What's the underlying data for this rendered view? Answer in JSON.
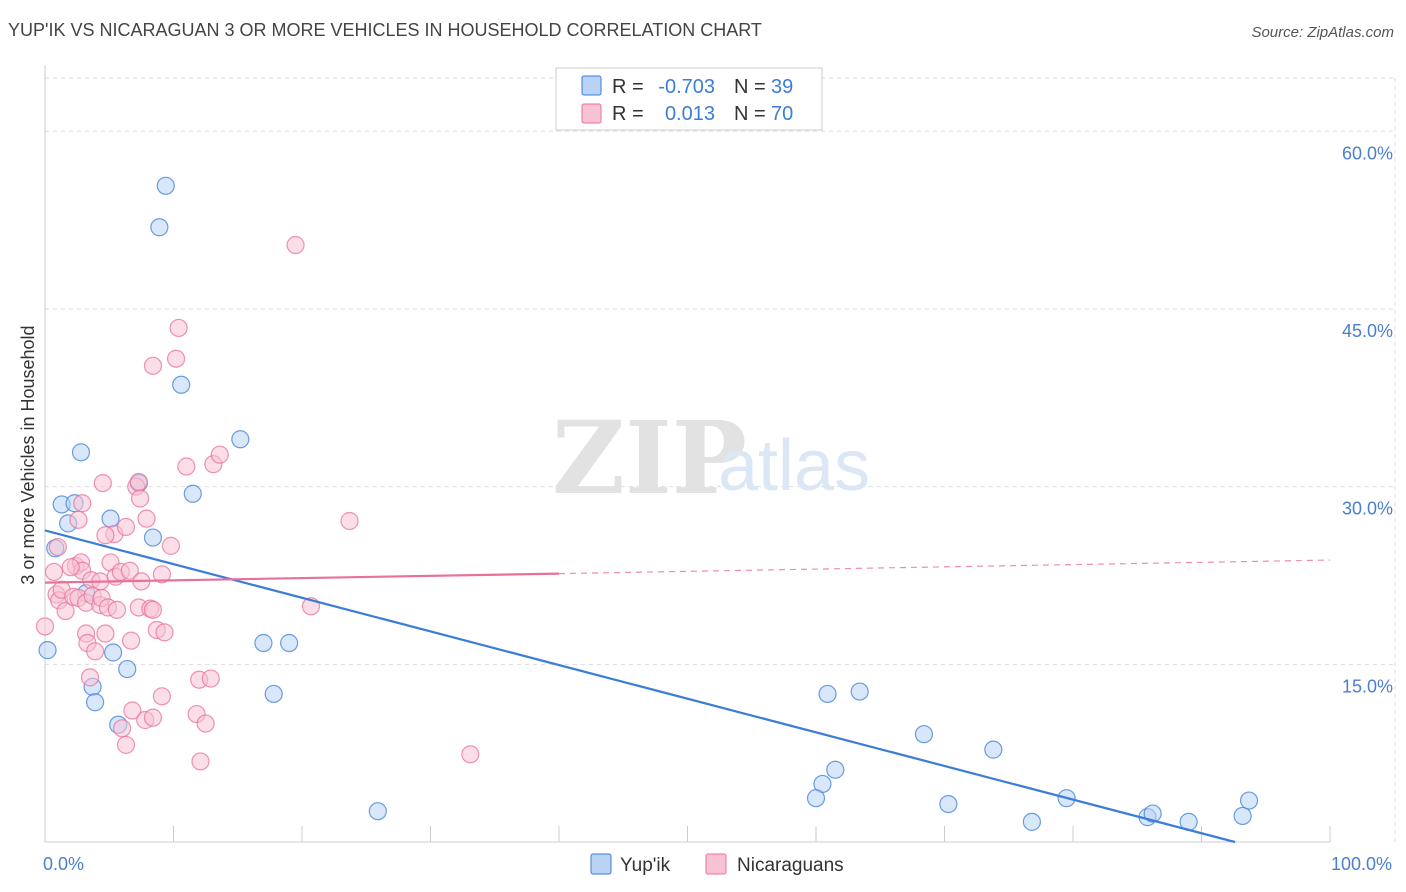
{
  "title": "YUP'IK VS NICARAGUAN 3 OR MORE VEHICLES IN HOUSEHOLD CORRELATION CHART",
  "source": "Source: ZipAtlas.com",
  "watermark": {
    "zip": "ZIP",
    "atlas": "atlas"
  },
  "colors": {
    "blue": "#3b7dd8",
    "blue_fill": "#b9d3f5",
    "pink": "#e8709a",
    "pink_fill": "#f7c3d4",
    "grid": "#dddddd",
    "tick_text": "#4a7fd0"
  },
  "legend": {
    "r_label": "R =",
    "n_label": "N =",
    "rows": [
      {
        "series": "Yup'ik",
        "r": "-0.703",
        "n": "39"
      },
      {
        "series": "Nicaraguans",
        "r": "0.013",
        "n": "70"
      }
    ]
  },
  "chart_data": {
    "type": "scatter",
    "xlabel": "",
    "ylabel": "3 or more Vehicles in Household",
    "xlim": [
      0,
      100
    ],
    "ylim": [
      0,
      64.5
    ],
    "x_tick_labels": [
      {
        "value": 0,
        "label": "0.0%"
      },
      {
        "value": 100,
        "label": "100.0%"
      }
    ],
    "x_minor_ticks": [
      10,
      20,
      30,
      40,
      50,
      60,
      70,
      80,
      90,
      100
    ],
    "y_ticks": [
      {
        "value": 15,
        "label": "15.0%"
      },
      {
        "value": 30,
        "label": "30.0%"
      },
      {
        "value": 45,
        "label": "45.0%"
      },
      {
        "value": 60,
        "label": "60.0%"
      }
    ],
    "series": [
      {
        "name": "Yup'ik",
        "color": "#3b7dd8",
        "fill": "#b9d3f5",
        "points": [
          [
            9.4,
            55.4
          ],
          [
            8.9,
            51.9
          ],
          [
            10.6,
            38.6
          ],
          [
            15.2,
            34.0
          ],
          [
            2.8,
            32.9
          ],
          [
            7.3,
            30.3
          ],
          [
            11.5,
            29.4
          ],
          [
            1.3,
            28.5
          ],
          [
            2.3,
            28.6
          ],
          [
            5.1,
            27.3
          ],
          [
            1.8,
            26.9
          ],
          [
            8.4,
            25.7
          ],
          [
            0.8,
            24.8
          ],
          [
            3.2,
            21.0
          ],
          [
            0.2,
            16.2
          ],
          [
            5.3,
            16.0
          ],
          [
            6.4,
            14.6
          ],
          [
            3.7,
            13.1
          ],
          [
            3.9,
            11.8
          ],
          [
            17.0,
            16.8
          ],
          [
            19.0,
            16.8
          ],
          [
            17.8,
            12.5
          ],
          [
            5.7,
            9.9
          ],
          [
            25.9,
            2.6
          ],
          [
            60.9,
            12.5
          ],
          [
            63.4,
            12.7
          ],
          [
            68.4,
            9.1
          ],
          [
            73.8,
            7.8
          ],
          [
            61.5,
            6.1
          ],
          [
            60.5,
            4.9
          ],
          [
            60.0,
            3.7
          ],
          [
            70.3,
            3.2
          ],
          [
            76.8,
            1.7
          ],
          [
            79.5,
            3.7
          ],
          [
            85.8,
            2.1
          ],
          [
            86.2,
            2.4
          ],
          [
            89.0,
            1.7
          ],
          [
            93.2,
            2.2
          ],
          [
            93.7,
            3.5
          ]
        ],
        "trend": {
          "x_start": 0,
          "y_start": 26.3,
          "x_end": 92.6,
          "y_end": 0,
          "dashed_after": null
        }
      },
      {
        "name": "Nicaraguans",
        "color": "#e8709a",
        "fill": "#f7c3d4",
        "points": [
          [
            0.0,
            18.2
          ],
          [
            0.7,
            22.8
          ],
          [
            0.9,
            20.9
          ],
          [
            1.1,
            20.4
          ],
          [
            1.3,
            21.3
          ],
          [
            1.6,
            19.5
          ],
          [
            2.2,
            20.7
          ],
          [
            2.4,
            23.3
          ],
          [
            2.6,
            20.6
          ],
          [
            2.6,
            27.2
          ],
          [
            2.8,
            23.6
          ],
          [
            2.9,
            22.9
          ],
          [
            2.9,
            28.6
          ],
          [
            3.2,
            17.6
          ],
          [
            3.2,
            20.2
          ],
          [
            3.3,
            16.8
          ],
          [
            3.5,
            13.9
          ],
          [
            3.6,
            22.1
          ],
          [
            3.7,
            20.8
          ],
          [
            4.3,
            20.0
          ],
          [
            4.3,
            22.0
          ],
          [
            4.4,
            20.6
          ],
          [
            4.5,
            30.3
          ],
          [
            4.7,
            17.6
          ],
          [
            4.9,
            19.8
          ],
          [
            5.1,
            23.6
          ],
          [
            5.4,
            26.0
          ],
          [
            5.5,
            22.4
          ],
          [
            5.6,
            19.6
          ],
          [
            5.9,
            22.8
          ],
          [
            6.0,
            9.6
          ],
          [
            6.3,
            26.6
          ],
          [
            6.3,
            8.2
          ],
          [
            6.6,
            22.9
          ],
          [
            6.7,
            17.0
          ],
          [
            6.8,
            11.1
          ],
          [
            7.1,
            30.0
          ],
          [
            7.3,
            19.8
          ],
          [
            7.3,
            30.4
          ],
          [
            7.4,
            29.0
          ],
          [
            7.5,
            22.0
          ],
          [
            7.8,
            10.3
          ],
          [
            7.9,
            27.3
          ],
          [
            8.2,
            19.7
          ],
          [
            8.4,
            40.2
          ],
          [
            8.4,
            10.5
          ],
          [
            8.4,
            19.6
          ],
          [
            8.7,
            17.9
          ],
          [
            9.1,
            12.3
          ],
          [
            9.3,
            17.7
          ],
          [
            9.8,
            25.0
          ],
          [
            10.2,
            40.8
          ],
          [
            10.4,
            43.4
          ],
          [
            11.0,
            31.7
          ],
          [
            11.8,
            10.8
          ],
          [
            12.0,
            13.7
          ],
          [
            12.1,
            6.8
          ],
          [
            12.5,
            10.0
          ],
          [
            12.9,
            13.8
          ],
          [
            13.1,
            31.9
          ],
          [
            13.6,
            32.7
          ],
          [
            19.5,
            50.4
          ],
          [
            20.7,
            19.9
          ],
          [
            23.7,
            27.1
          ],
          [
            33.1,
            7.4
          ],
          [
            1.0,
            24.9
          ],
          [
            2.0,
            23.2
          ],
          [
            3.9,
            16.1
          ],
          [
            4.7,
            25.9
          ],
          [
            9.1,
            22.6
          ]
        ],
        "trend": {
          "x_start": 0,
          "y_start": 21.9,
          "x_end": 100,
          "y_end": 23.8,
          "dashed_after": 40
        }
      }
    ]
  }
}
